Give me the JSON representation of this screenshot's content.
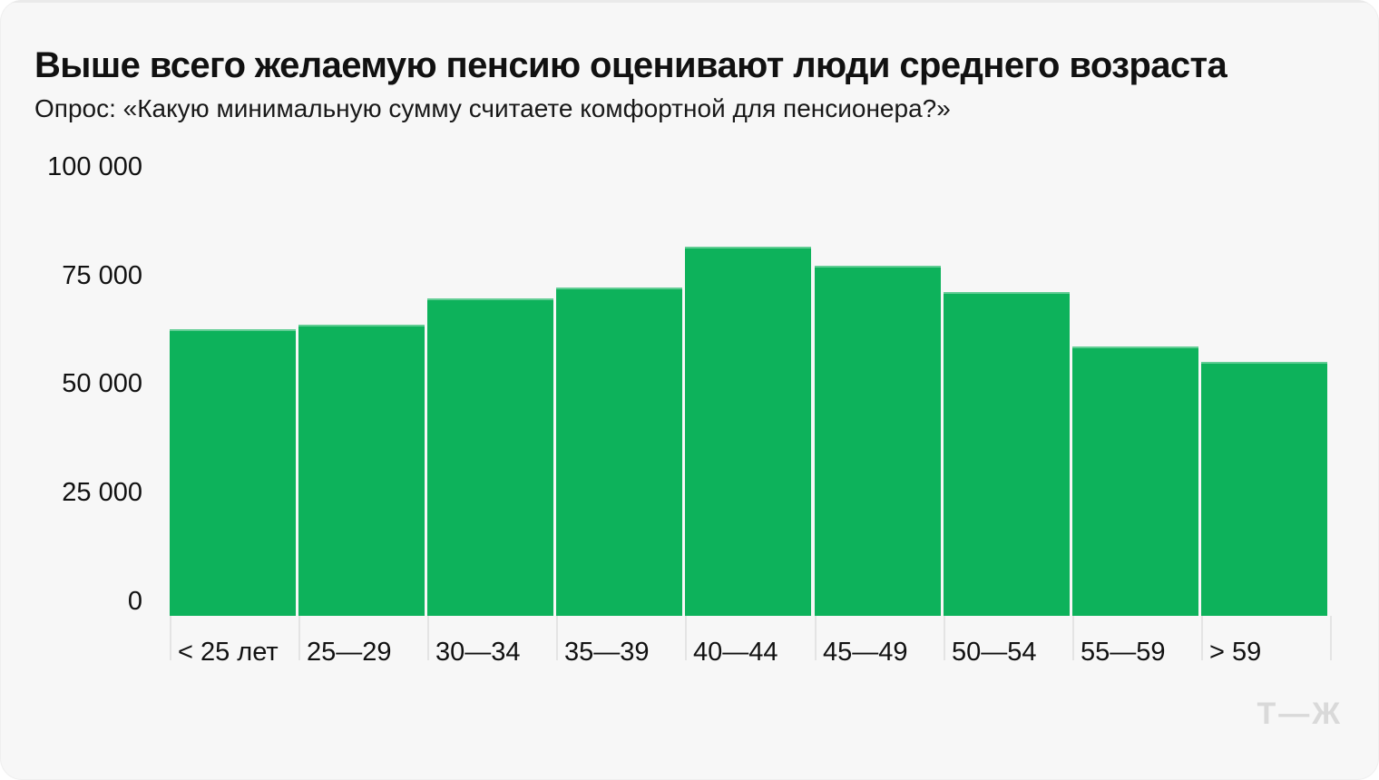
{
  "header": {
    "title": "Выше всего желаемую пенсию оценивают люди среднего возраста",
    "subtitle": "Опрос: «Какую минимальную сумму считаете комфортной для пенсионера?»"
  },
  "chart_data": {
    "type": "bar",
    "title": "Выше всего желаемую пенсию оценивают люди среднего возраста",
    "subtitle": "Опрос: «Какую минимальную сумму считаете комфортной для пенсионера?»",
    "categories": [
      "< 25 лет",
      "25—29",
      "30—34",
      "35—39",
      "40—44",
      "45—49",
      "50—54",
      "55—59",
      "> 59"
    ],
    "values": [
      66000,
      67000,
      73000,
      75500,
      85000,
      80500,
      74500,
      62000,
      58500
    ],
    "xlabel": "",
    "ylabel": "",
    "ylim": [
      0,
      100000
    ],
    "ytick_values": [
      0,
      25000,
      50000,
      75000,
      100000
    ],
    "ytick_labels": [
      "0",
      "25 000",
      "50 000",
      "75 000",
      "100 000"
    ],
    "grid": false,
    "legend": "none",
    "bar_color": "#0db25b",
    "background_color": "#f7f7f7",
    "text_color": "#111111",
    "tick_line_color": "#e4e4e4"
  },
  "footer": {
    "logo": "Т—Ж",
    "logo_color": "#d9d9d9"
  }
}
